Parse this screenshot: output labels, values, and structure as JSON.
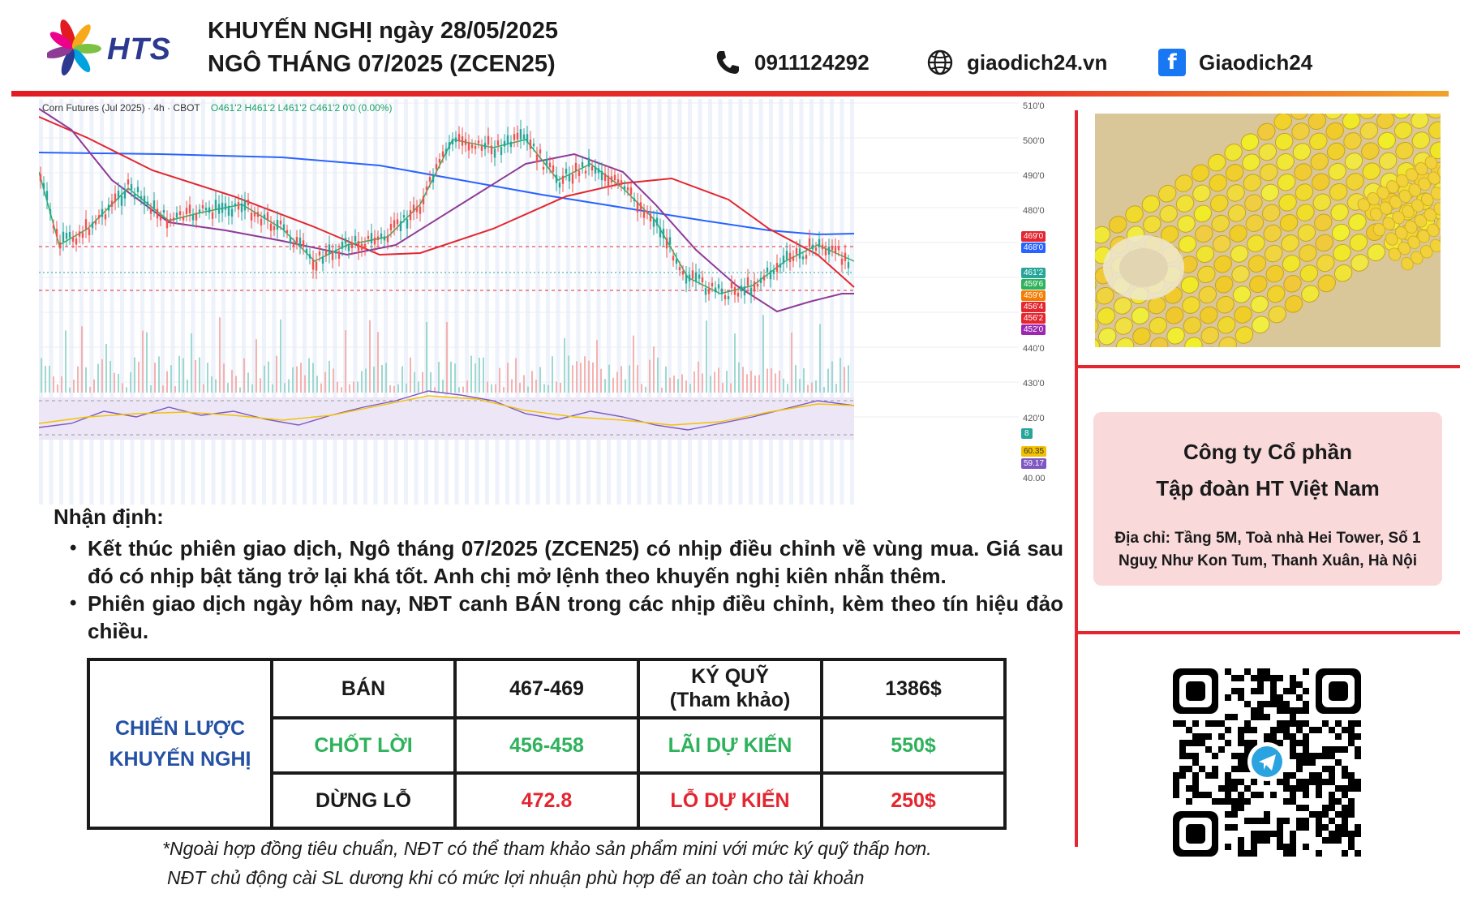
{
  "header": {
    "brand": "HTS",
    "title_line1": "KHUYẾN NGHỊ ngày 28/05/2025",
    "title_line2": "NGÔ THÁNG 07/2025 (ZCEN25)",
    "phone": "0911124292",
    "website": "giaodich24.vn",
    "facebook": "Giaodich24",
    "icons": [
      "phone-icon",
      "globe-icon",
      "facebook-icon"
    ],
    "accent_colors": {
      "red": "#e21b23",
      "orange": "#f2a12a",
      "blue": "#2b3990"
    }
  },
  "chart": {
    "legend_symbol": "Corn Futures (Jul 2025) · 4h · CBOT",
    "legend_ohlc": "O461'2 H461'2 L461'2 C461'2 0'0 (0.00%)",
    "price_ticks": [
      "510'0",
      "500'0",
      "490'0",
      "480'0",
      "440'0",
      "430'0",
      "420'0"
    ],
    "price_tags": [
      {
        "label": "469'0",
        "color": "#e3262f"
      },
      {
        "label": "468'0",
        "color": "#2962ff"
      },
      {
        "label": "461'2",
        "color": "#26a69a"
      },
      {
        "label": "459'6",
        "color": "#2eb25b"
      },
      {
        "label": "459'6",
        "color": "#f57c00"
      },
      {
        "label": "456'4",
        "color": "#e3262f"
      },
      {
        "label": "456'2",
        "color": "#e3262f"
      },
      {
        "label": "452'0",
        "color": "#9c27b0"
      }
    ],
    "volume_tag": "8",
    "rsi_tags": [
      {
        "label": "60.35",
        "color": "#f2c200"
      },
      {
        "label": "59.17",
        "color": "#7e57c2"
      }
    ],
    "rsi_tick": "40.00"
  },
  "analysis": {
    "heading": "Nhận định:",
    "bullets": [
      "Kết thúc phiên giao dịch, Ngô tháng 07/2025 (ZCEN25) có nhịp điều chỉnh về vùng mua. Giá sau đó có nhịp bật tăng trở lại khá tốt. Anh chị mở lệnh theo khuyến nghị kiên nhẫn thêm.",
      "Phiên giao dịch ngày hôm nay, NĐT canh BÁN trong các nhịp điều chỉnh, kèm theo tín hiệu đảo chiều."
    ]
  },
  "strategy": {
    "label_line1": "CHIẾN LƯỢC",
    "label_line2": "KHUYẾN NGHỊ",
    "rows": [
      {
        "action": "BÁN",
        "range": "467-469",
        "metric_line1": "KÝ QUỸ",
        "metric_line2": "(Tham khảo)",
        "amount": "1386$"
      },
      {
        "action": "CHỐT LỜI",
        "range": "456-458",
        "metric_line1": "LÃI DỰ KIẾN",
        "metric_line2": "",
        "amount": "550$"
      },
      {
        "action": "DỪNG LỖ",
        "range": "472.8",
        "metric_line1": "LỖ DỰ KIẾN",
        "metric_line2": "",
        "amount": "250$"
      }
    ]
  },
  "company": {
    "name_line1": "Công ty Cổ phần",
    "name_line2": "Tập đoàn HT Việt Nam",
    "address": "Địa chỉ: Tầng 5M, Toà nhà Hei Tower, Số 1 Nguỵ Như Kon Tum, Thanh Xuân, Hà Nội"
  },
  "notes": {
    "line1": "*Ngoài hợp đồng tiêu chuẩn, NĐT có thể tham khảo sản phẩm mini với mức ký quỹ thấp hơn.",
    "line2": "NĐT chủ động cài SL dương khi có mức lợi nhuận phù hợp để an toàn cho tài khoản"
  }
}
